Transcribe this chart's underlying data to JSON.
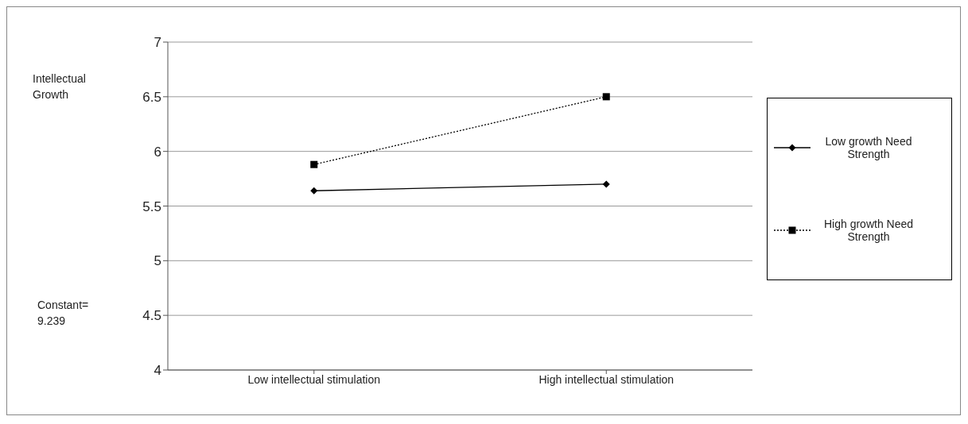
{
  "chart_data": {
    "type": "line",
    "annotations": [
      "Intellectual Growth",
      "Constant= 9.239"
    ],
    "categories": [
      "Low intellectual stimulation",
      "High intellectual stimulation"
    ],
    "series": [
      {
        "name": "Low growth Need Strength",
        "color": "#000000",
        "values": [
          5.64,
          5.7
        ],
        "marker": "diamond",
        "line_style": "solid"
      },
      {
        "name": "High growth Need Strength",
        "color": "#000000",
        "values": [
          5.88,
          6.5
        ],
        "marker": "square",
        "line_style": "dotted"
      }
    ],
    "ylim": [
      4,
      7
    ],
    "yticks": [
      4,
      4.5,
      5,
      5.5,
      6,
      6.5,
      7
    ],
    "grid": "y",
    "legend": "right"
  }
}
